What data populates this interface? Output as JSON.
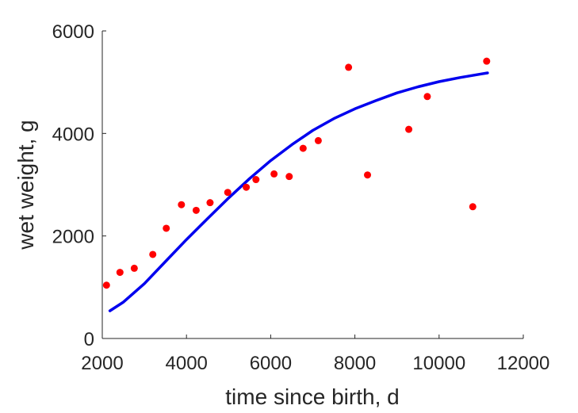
{
  "chart_data": {
    "type": "scatter",
    "xlabel": "time since birth, d",
    "ylabel": "wet weight, g",
    "xlim": [
      2000,
      12000
    ],
    "ylim": [
      0,
      6000
    ],
    "xticks": [
      2000,
      4000,
      6000,
      8000,
      10000,
      12000
    ],
    "yticks": [
      0,
      2000,
      4000,
      6000
    ],
    "grid": false,
    "box": false,
    "series": [
      {
        "kind": "scatter",
        "color": "#ff0000",
        "x": [
          2100,
          2420,
          2760,
          3200,
          3520,
          3880,
          4230,
          4560,
          4980,
          5420,
          5650,
          6080,
          6440,
          6770,
          7130,
          7850,
          8300,
          9280,
          9720,
          10800,
          11130
        ],
        "y": [
          1040,
          1290,
          1370,
          1640,
          2150,
          2610,
          2500,
          2650,
          2850,
          2950,
          3100,
          3210,
          3160,
          3710,
          3860,
          5290,
          3190,
          4080,
          4720,
          2570,
          5410
        ]
      },
      {
        "kind": "line",
        "color": "#0000ee",
        "x": [
          2180,
          2500,
          3000,
          3500,
          4000,
          4500,
          5000,
          5500,
          6000,
          6500,
          7000,
          7500,
          8000,
          8500,
          9000,
          9500,
          10000,
          10500,
          11000,
          11150
        ],
        "y": [
          540,
          710,
          1070,
          1500,
          1930,
          2340,
          2740,
          3120,
          3470,
          3780,
          4060,
          4290,
          4480,
          4640,
          4790,
          4910,
          5010,
          5090,
          5160,
          5180
        ]
      }
    ]
  }
}
